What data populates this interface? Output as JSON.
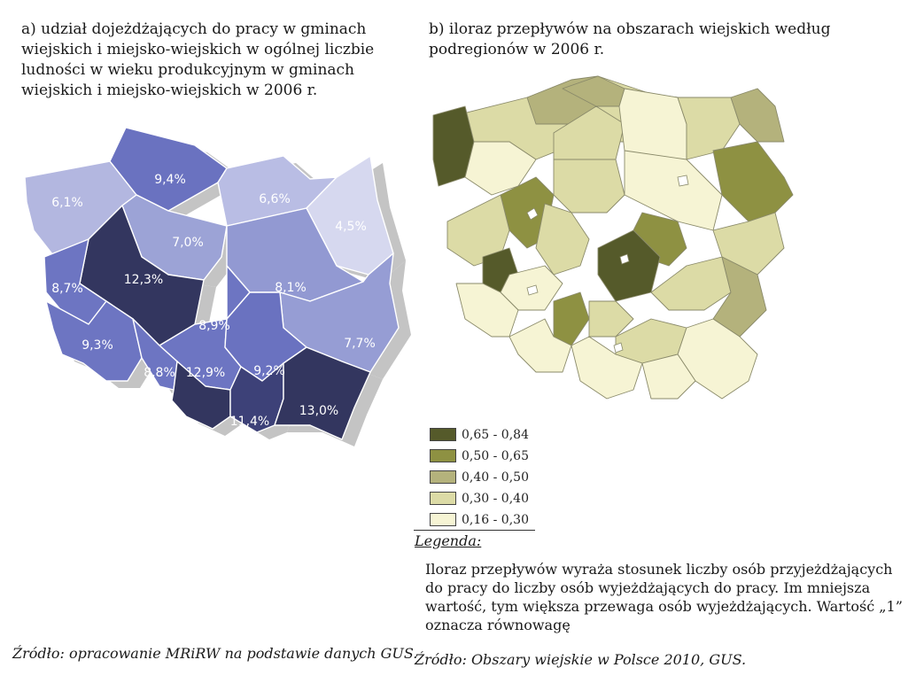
{
  "panel_a": {
    "title": "a) udział dojeżdżających do pracy w gminach\nwiejskich i miejsko-wiejskich w ogólnej liczbie\nludności w wieku produkcyjnym w gminach\nwiejskich i miejsko-wiejskich w 2006 r.",
    "regions": [
      {
        "label": "6,1%",
        "value": 6.1,
        "fill": "#b3b7e0"
      },
      {
        "label": "9,4%",
        "value": 9.4,
        "fill": "#6a72c0"
      },
      {
        "label": "6,6%",
        "value": 6.6,
        "fill": "#b9bde4"
      },
      {
        "label": "4,5%",
        "value": 4.5,
        "fill": "#d6d8ef"
      },
      {
        "label": "7,0%",
        "value": 7.0,
        "fill": "#9ca3d6"
      },
      {
        "label": "12,3%",
        "value": 12.3,
        "fill": "#33365f"
      },
      {
        "label": "8,7%",
        "value": 8.7,
        "fill": "#6d75c2"
      },
      {
        "label": "8,1%",
        "value": 8.1,
        "fill": "#9299d2"
      },
      {
        "label": "8,9%",
        "value": 8.9,
        "fill": "#6d75c2"
      },
      {
        "label": "9,3%",
        "value": 9.3,
        "fill": "#6d75c2"
      },
      {
        "label": "7,7%",
        "value": 7.7,
        "fill": "#969dd4"
      },
      {
        "label": "8,8%",
        "value": 8.8,
        "fill": "#6d75c2"
      },
      {
        "label": "12,9%",
        "value": 12.9,
        "fill": "#33365f"
      },
      {
        "label": "9,2%",
        "value": 9.2,
        "fill": "#6a72c0"
      },
      {
        "label": "11,4%",
        "value": 11.4,
        "fill": "#3d4178"
      },
      {
        "label": "13,0%",
        "value": 13.0,
        "fill": "#33365f"
      }
    ],
    "source": "Źródło: opracowanie MRiRW na podstawie danych GUS."
  },
  "panel_b": {
    "title": "b) iloraz przepływów na obszarach wiejskich według\npodregionów w 2006 r.",
    "legend": [
      {
        "label": "0,65 - 0,84",
        "color": "#555a2a"
      },
      {
        "label": "0,50 - 0,65",
        "color": "#8e9142"
      },
      {
        "label": "0,40 - 0,50",
        "color": "#b4b27c"
      },
      {
        "label": "0,30 - 0,40",
        "color": "#dcdba6"
      },
      {
        "label": "0,16 - 0,30",
        "color": "#f6f4d4"
      }
    ],
    "legend_caption": "Legenda:",
    "note": "Iloraz przepływów wyraża stosunek liczby osób przyjeżdżających do pracy do liczby osób wyjeżdżających do pracy. Im mniejsza wartość, tym większa przewaga osób wyjeżdżających. Wartość „1” oznacza równowagę",
    "source": "Źródło: Obszary wiejskie w Polsce 2010, GUS."
  }
}
